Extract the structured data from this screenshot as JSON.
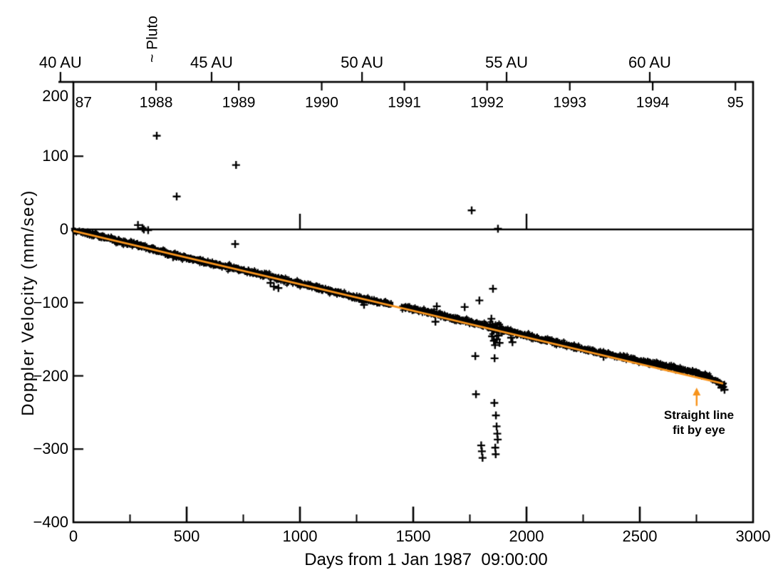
{
  "figure": {
    "background": "#ffffff",
    "text_color": "#000000"
  },
  "chart_data": {
    "type": "scatter",
    "xlabel": "Days from 1 Jan 1987  09:00:00",
    "ylabel": "Doppler Velocity (mm/sec)",
    "xlim": [
      0,
      3000
    ],
    "ylim": [
      -400,
      200
    ],
    "grid": false,
    "marker": "+",
    "marker_color": "#000000",
    "x_ticks": {
      "major": [
        0,
        500,
        1000,
        1500,
        2000,
        2500,
        3000
      ],
      "minor": [
        250,
        750,
        1250,
        1750,
        2250,
        2750
      ],
      "labels": [
        "0",
        "500",
        "1000",
        "1500",
        "2000",
        "2500",
        "3000"
      ]
    },
    "y_ticks": {
      "values": [
        200,
        100,
        0,
        -100,
        -200,
        -300,
        -400
      ],
      "labels": [
        "200",
        "100",
        "0",
        "−100",
        "−200",
        "−300",
        "−400"
      ]
    },
    "top_axis": {
      "au_marks": [
        {
          "label": "40 AU",
          "day": -57
        },
        {
          "label": "45 AU",
          "day": 610
        },
        {
          "label": "50 AU",
          "day": 1274
        },
        {
          "label": "55 AU",
          "day": 1912
        },
        {
          "label": "60 AU",
          "day": 2544
        }
      ],
      "pluto_label": "~ Pluto",
      "pluto_day": 346,
      "year_marks": [
        {
          "label": "87",
          "day": 45,
          "tick": false
        },
        {
          "label": "1988",
          "day": 365,
          "tick": true
        },
        {
          "label": "1989",
          "day": 730,
          "tick": true
        },
        {
          "label": "1990",
          "day": 1096,
          "tick": true
        },
        {
          "label": "1991",
          "day": 1461,
          "tick": true
        },
        {
          "label": "1992",
          "day": 1826,
          "tick": true
        },
        {
          "label": "1993",
          "day": 2191,
          "tick": true
        },
        {
          "label": "1994",
          "day": 2557,
          "tick": true
        },
        {
          "label": "95",
          "day": 2922,
          "tick": true
        }
      ]
    },
    "zero_line": {
      "value": 0,
      "tick_days": [
        1000,
        2000
      ]
    },
    "main_band": {
      "description": "dense band of + markers",
      "half_width_mm": 4.3,
      "gap_days": [
        1405,
        1448
      ],
      "points": [
        [
          0,
          -1
        ],
        [
          60,
          -5
        ],
        [
          120,
          -9
        ],
        [
          200,
          -16
        ],
        [
          280,
          -21
        ],
        [
          360,
          -28
        ],
        [
          440,
          -35
        ],
        [
          520,
          -40
        ],
        [
          600,
          -46
        ],
        [
          680,
          -51
        ],
        [
          760,
          -57
        ],
        [
          840,
          -62
        ],
        [
          900,
          -67
        ],
        [
          960,
          -71
        ],
        [
          1040,
          -77
        ],
        [
          1120,
          -83
        ],
        [
          1200,
          -89
        ],
        [
          1280,
          -95
        ],
        [
          1360,
          -100
        ],
        [
          1405,
          -103
        ],
        [
          1448,
          -106
        ],
        [
          1520,
          -110
        ],
        [
          1600,
          -116
        ],
        [
          1680,
          -122
        ],
        [
          1760,
          -127
        ],
        [
          1840,
          -133
        ],
        [
          1920,
          -139
        ],
        [
          2000,
          -145
        ],
        [
          2080,
          -151
        ],
        [
          2160,
          -157
        ],
        [
          2240,
          -162
        ],
        [
          2320,
          -168
        ],
        [
          2400,
          -173
        ],
        [
          2480,
          -178
        ],
        [
          2560,
          -183
        ],
        [
          2640,
          -188
        ],
        [
          2700,
          -192
        ],
        [
          2760,
          -197
        ],
        [
          2800,
          -201
        ],
        [
          2830,
          -205
        ],
        [
          2850,
          -209
        ],
        [
          2875,
          -214
        ]
      ],
      "cluster_spread_days": [
        1835,
        1895
      ]
    },
    "outliers": [
      [
        285,
        6
      ],
      [
        305,
        2
      ],
      [
        311,
        0
      ],
      [
        330,
        -1
      ],
      [
        368,
        128
      ],
      [
        456,
        45
      ],
      [
        718,
        88
      ],
      [
        714,
        -20
      ],
      [
        440,
        -38
      ],
      [
        870,
        -73
      ],
      [
        885,
        -78
      ],
      [
        905,
        -80
      ],
      [
        1275,
        -99
      ],
      [
        1283,
        -103
      ],
      [
        1598,
        -126
      ],
      [
        1604,
        -105
      ],
      [
        1727,
        -106
      ],
      [
        1758,
        26
      ],
      [
        1874,
        1
      ],
      [
        1792,
        -97
      ],
      [
        1852,
        -81
      ],
      [
        1774,
        -173
      ],
      [
        1859,
        -176
      ],
      [
        1777,
        -225
      ],
      [
        1858,
        -237
      ],
      [
        1865,
        -254
      ],
      [
        1868,
        -269
      ],
      [
        1871,
        -279
      ],
      [
        1873,
        -287
      ],
      [
        1800,
        -295
      ],
      [
        1803,
        -303
      ],
      [
        1806,
        -312
      ],
      [
        1862,
        -298
      ],
      [
        1864,
        -307
      ],
      [
        1845,
        -122
      ],
      [
        1850,
        -130
      ],
      [
        1855,
        -138
      ],
      [
        1848,
        -146
      ],
      [
        1856,
        -152
      ],
      [
        1861,
        -158
      ],
      [
        1869,
        -150
      ],
      [
        1876,
        -145
      ],
      [
        1881,
        -155
      ],
      [
        1932,
        -148
      ],
      [
        1938,
        -154
      ],
      [
        2340,
        -174
      ],
      [
        2852,
        -212
      ],
      [
        2860,
        -216
      ],
      [
        2868,
        -215
      ],
      [
        2874,
        -219
      ]
    ],
    "fit_line": {
      "color": "#F7941D",
      "from": [
        0,
        -2
      ],
      "to": [
        2868,
        -210.5
      ],
      "label_line1": "Straight line",
      "label_line2": "fit by eye",
      "arrow_day": 2751,
      "arrow_tip_value": -216,
      "arrow_base_value": -241
    }
  }
}
